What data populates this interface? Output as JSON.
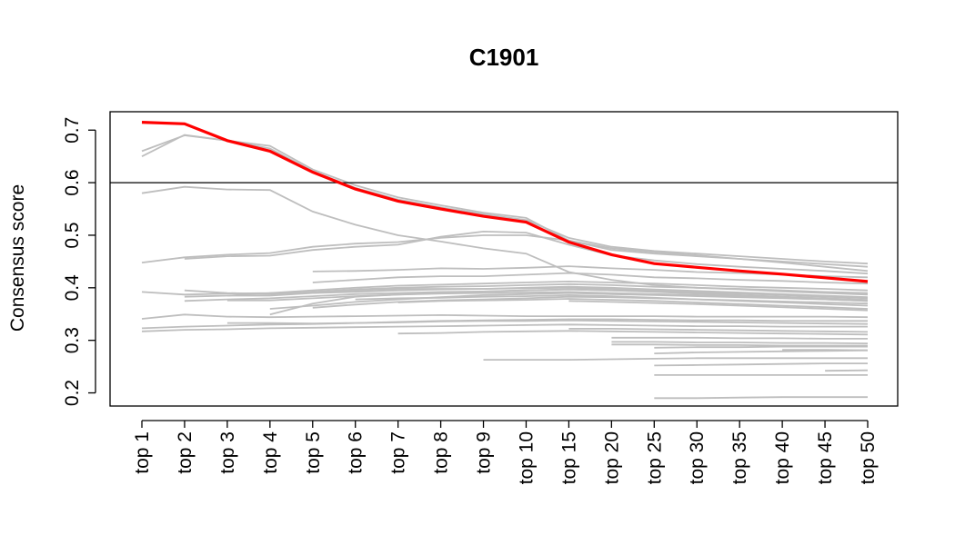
{
  "chart_data": {
    "type": "line",
    "title": "C1901",
    "xlabel": "",
    "ylabel": "Consensus score",
    "categories": [
      "top 1",
      "top 2",
      "top 3",
      "top 4",
      "top 5",
      "top 6",
      "top 7",
      "top 8",
      "top 9",
      "top 10",
      "top 15",
      "top 20",
      "top 25",
      "top 30",
      "top 35",
      "top 40",
      "top 45",
      "top 50"
    ],
    "yticks": [
      0.2,
      0.3,
      0.4,
      0.5,
      0.6,
      0.7
    ],
    "ylim": [
      0.175,
      0.735
    ],
    "reference_line": 0.6,
    "highlight_color": "#ff0000",
    "background_color": "#bebebe",
    "highlight_series": {
      "name": "C1901",
      "values": [
        0.715,
        0.712,
        0.68,
        0.66,
        0.62,
        0.588,
        0.565,
        0.55,
        0.536,
        0.525,
        0.487,
        0.463,
        0.446,
        0.439,
        0.432,
        0.426,
        0.419,
        0.412
      ]
    },
    "background_series": [
      {
        "start": 0,
        "values": [
          0.65,
          0.691,
          0.68,
          0.67,
          0.625,
          0.595,
          0.572,
          0.557,
          0.543,
          0.533,
          0.49,
          0.472,
          0.465,
          0.46,
          0.455,
          0.45,
          0.445,
          0.44
        ]
      },
      {
        "start": 0,
        "values": [
          0.66,
          0.69,
          0.68,
          0.665,
          0.622,
          0.59,
          0.568,
          0.553,
          0.54,
          0.529,
          0.495,
          0.478,
          0.47,
          0.465,
          0.46,
          0.455,
          0.45,
          0.446
        ]
      },
      {
        "start": 0,
        "values": [
          0.58,
          0.592,
          0.587,
          0.586,
          0.545,
          0.52,
          0.5,
          0.488,
          0.475,
          0.465,
          0.43,
          0.415,
          0.405,
          0.4,
          0.397,
          0.393,
          0.39,
          0.387
        ]
      },
      {
        "start": 0,
        "values": [
          0.448,
          0.458,
          0.463,
          0.466,
          0.478,
          0.484,
          0.487,
          0.495,
          0.5,
          0.5,
          0.49,
          0.475,
          0.468,
          0.462,
          0.455,
          0.448,
          0.44,
          0.432
        ]
      },
      {
        "start": 1,
        "values": [
          0.455,
          0.46,
          0.461,
          0.472,
          0.478,
          0.482,
          0.497,
          0.507,
          0.505,
          0.482,
          0.462,
          0.452,
          0.445,
          0.44,
          0.436,
          0.432,
          0.427
        ]
      },
      {
        "start": 4,
        "values": [
          0.431,
          0.432,
          0.434,
          0.437,
          0.436,
          0.438,
          0.441,
          0.437,
          0.434,
          0.43,
          0.428,
          0.425,
          0.422,
          0.42
        ]
      },
      {
        "start": 4,
        "values": [
          0.41,
          0.415,
          0.42,
          0.422,
          0.422,
          0.425,
          0.428,
          0.425,
          0.42,
          0.418,
          0.415,
          0.413,
          0.41,
          0.408
        ]
      },
      {
        "start": 0,
        "values": [
          0.392,
          0.387,
          0.389,
          0.39,
          0.395,
          0.4,
          0.404,
          0.406,
          0.408,
          0.41,
          0.412,
          0.41,
          0.408,
          0.405,
          0.402,
          0.4,
          0.398,
          0.395
        ]
      },
      {
        "start": 1,
        "values": [
          0.395,
          0.39,
          0.388,
          0.392,
          0.397,
          0.4,
          0.402,
          0.403,
          0.405,
          0.407,
          0.405,
          0.402,
          0.4,
          0.398,
          0.395,
          0.392,
          0.39
        ]
      },
      {
        "start": 1,
        "values": [
          0.383,
          0.385,
          0.385,
          0.39,
          0.395,
          0.398,
          0.398,
          0.398,
          0.4,
          0.402,
          0.4,
          0.397,
          0.394,
          0.391,
          0.388,
          0.385,
          0.382
        ]
      },
      {
        "start": 1,
        "values": [
          0.375,
          0.378,
          0.38,
          0.384,
          0.388,
          0.39,
          0.392,
          0.393,
          0.395,
          0.397,
          0.395,
          0.392,
          0.389,
          0.386,
          0.383,
          0.38,
          0.377
        ]
      },
      {
        "start": 2,
        "values": [
          0.385,
          0.39,
          0.39,
          0.392,
          0.395,
          0.397,
          0.398,
          0.399,
          0.4,
          0.398,
          0.395,
          0.392,
          0.39,
          0.387,
          0.384,
          0.381
        ]
      },
      {
        "start": 2,
        "values": [
          0.376,
          0.376,
          0.38,
          0.384,
          0.387,
          0.389,
          0.39,
          0.391,
          0.392,
          0.39,
          0.388,
          0.386,
          0.384,
          0.381,
          0.378,
          0.375
        ]
      },
      {
        "start": 3,
        "values": [
          0.349,
          0.37,
          0.383,
          0.387,
          0.39,
          0.393,
          0.395,
          0.397,
          0.395,
          0.393,
          0.391,
          0.389,
          0.386,
          0.383,
          0.38
        ]
      },
      {
        "start": 3,
        "values": [
          0.36,
          0.366,
          0.373,
          0.378,
          0.382,
          0.386,
          0.388,
          0.39,
          0.388,
          0.386,
          0.384,
          0.382,
          0.38,
          0.378,
          0.375
        ]
      },
      {
        "start": 4,
        "values": [
          0.362,
          0.368,
          0.373,
          0.376,
          0.378,
          0.38,
          0.383,
          0.382,
          0.38,
          0.378,
          0.376,
          0.374,
          0.372,
          0.37
        ]
      },
      {
        "start": 5,
        "values": [
          0.378,
          0.38,
          0.381,
          0.383,
          0.384,
          0.386,
          0.384,
          0.381,
          0.378,
          0.375,
          0.372,
          0.369,
          0.366
        ]
      },
      {
        "start": 6,
        "values": [
          0.372,
          0.375,
          0.376,
          0.377,
          0.379,
          0.377,
          0.375,
          0.372,
          0.369,
          0.366,
          0.363,
          0.36
        ]
      },
      {
        "start": 10,
        "values": [
          0.375,
          0.373,
          0.371,
          0.369,
          0.366,
          0.363,
          0.36,
          0.357
        ]
      },
      {
        "start": 0,
        "values": [
          0.341,
          0.349,
          0.345,
          0.344,
          0.345,
          0.346,
          0.347,
          0.348,
          0.347,
          0.346,
          0.346,
          0.346,
          0.346,
          0.345,
          0.345,
          0.345,
          0.345,
          0.344
        ]
      },
      {
        "start": 0,
        "values": [
          0.323,
          0.326,
          0.328,
          0.33,
          0.331,
          0.333,
          0.335,
          0.337,
          0.338,
          0.339,
          0.34,
          0.34,
          0.339,
          0.338,
          0.338,
          0.337,
          0.337,
          0.337
        ]
      },
      {
        "start": 0,
        "values": [
          0.317,
          0.32,
          0.321,
          0.323,
          0.324,
          0.325,
          0.326,
          0.327,
          0.328,
          0.329,
          0.33,
          0.329,
          0.328,
          0.327,
          0.327,
          0.326,
          0.326,
          0.326
        ]
      },
      {
        "start": 2,
        "values": [
          0.333,
          0.333,
          0.332,
          0.333,
          0.334,
          0.336,
          0.337,
          0.337,
          0.338,
          0.337,
          0.336,
          0.335,
          0.334,
          0.333,
          0.332,
          0.331
        ]
      },
      {
        "start": 6,
        "values": [
          0.313,
          0.314,
          0.316,
          0.317,
          0.318,
          0.317,
          0.316,
          0.315,
          0.314,
          0.313,
          0.312,
          0.311
        ]
      },
      {
        "start": 10,
        "values": [
          0.322,
          0.322,
          0.321,
          0.32,
          0.319,
          0.318,
          0.317,
          0.316
        ]
      },
      {
        "start": 11,
        "values": [
          0.305,
          0.305,
          0.305,
          0.304,
          0.304,
          0.303,
          0.303
        ]
      },
      {
        "start": 11,
        "values": [
          0.297,
          0.297,
          0.296,
          0.296,
          0.295,
          0.295,
          0.294
        ]
      },
      {
        "start": 11,
        "values": [
          0.292,
          0.292,
          0.291,
          0.291,
          0.29,
          0.29,
          0.29
        ]
      },
      {
        "start": 12,
        "values": [
          0.286,
          0.287,
          0.287,
          0.288,
          0.288,
          0.288
        ]
      },
      {
        "start": 12,
        "values": [
          0.275,
          0.277,
          0.278,
          0.279,
          0.28,
          0.281
        ]
      },
      {
        "start": 15,
        "values": [
          0.282,
          0.282,
          0.281
        ]
      },
      {
        "start": 8,
        "values": [
          0.263,
          0.263,
          0.263,
          0.264,
          0.265,
          0.266,
          0.266,
          0.266,
          0.266,
          0.266
        ]
      },
      {
        "start": 12,
        "values": [
          0.252,
          0.253,
          0.254,
          0.255,
          0.256,
          0.256
        ]
      },
      {
        "start": 12,
        "values": [
          0.234,
          0.234,
          0.234,
          0.234,
          0.234,
          0.234
        ]
      },
      {
        "start": 16,
        "values": [
          0.242,
          0.243
        ]
      },
      {
        "start": 12,
        "values": [
          0.19,
          0.19,
          0.191,
          0.192,
          0.192,
          0.192
        ]
      }
    ]
  }
}
